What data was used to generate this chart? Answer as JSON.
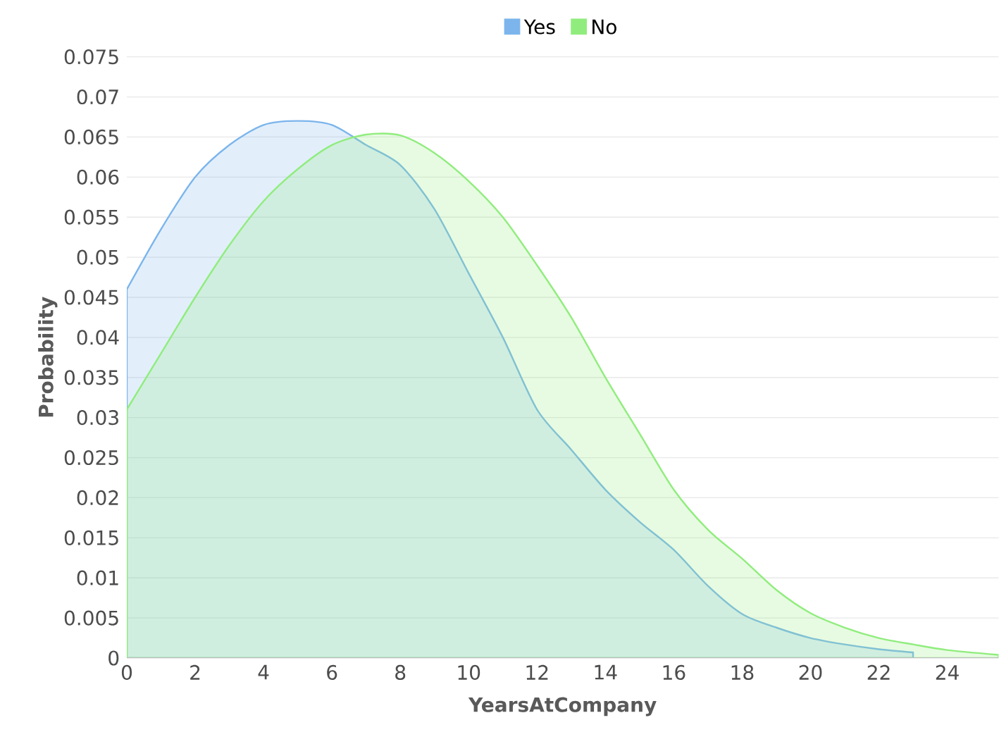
{
  "chart_data": {
    "type": "area",
    "xlabel": "YearsAtCompany",
    "ylabel": "Probability",
    "xlim": [
      0,
      25.5
    ],
    "xticks": [
      0,
      2,
      4,
      6,
      8,
      10,
      12,
      14,
      16,
      18,
      20,
      22,
      24
    ],
    "ylim": [
      0,
      0.075
    ],
    "yticks": [
      0,
      0.005,
      0.01,
      0.015,
      0.02,
      0.025,
      0.03,
      0.035,
      0.04,
      0.045,
      0.05,
      0.055,
      0.06,
      0.065,
      0.07,
      0.075
    ],
    "grid": "y",
    "legend": "top",
    "marker": "none",
    "series": [
      {
        "name": "Yes",
        "color": "#7cb5ec",
        "x": [
          0,
          1,
          2,
          3,
          4,
          5,
          6,
          7,
          8,
          9,
          10,
          11,
          12,
          13,
          14,
          15,
          16,
          17,
          18,
          19,
          20,
          21,
          22,
          23
        ],
        "values": [
          0.046,
          0.0535,
          0.06,
          0.064,
          0.0665,
          0.067,
          0.0665,
          0.064,
          0.0615,
          0.056,
          0.048,
          0.04,
          0.031,
          0.026,
          0.021,
          0.017,
          0.0135,
          0.009,
          0.0055,
          0.0038,
          0.0025,
          0.0017,
          0.0011,
          0.0007
        ]
      },
      {
        "name": "No",
        "color": "#90ed7d",
        "x": [
          0,
          1,
          2,
          3,
          4,
          5,
          6,
          7,
          8,
          9,
          10,
          11,
          12,
          13,
          14,
          15,
          16,
          17,
          18,
          19,
          20,
          21,
          22,
          23,
          24,
          25.5
        ],
        "values": [
          0.031,
          0.038,
          0.045,
          0.0515,
          0.057,
          0.061,
          0.064,
          0.0653,
          0.0652,
          0.063,
          0.0595,
          0.055,
          0.049,
          0.0425,
          0.035,
          0.028,
          0.021,
          0.016,
          0.0124,
          0.0085,
          0.0056,
          0.0038,
          0.0025,
          0.0017,
          0.001,
          0.0004
        ]
      }
    ]
  }
}
